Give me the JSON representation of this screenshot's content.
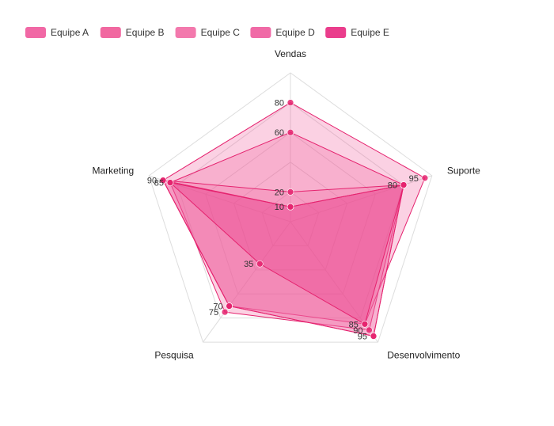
{
  "chart_data": {
    "type": "radar",
    "title": "",
    "legend": {
      "position": "top-left",
      "entries": [
        "Equipe A",
        "Equipe B",
        "Equipe C",
        "Equipe D",
        "Equipe E"
      ]
    },
    "categories": [
      "Vendas",
      "Suporte",
      "Desenvolvimento",
      "Pesquisa",
      "Marketing"
    ],
    "range": [
      0,
      100
    ],
    "grid": true,
    "colors": {
      "series": [
        "#f0589b",
        "#f05896",
        "#f26aa4",
        "#ee5a9c",
        "#e8287f"
      ],
      "grid": "#dddddd",
      "point": "#e5236f"
    },
    "series": [
      {
        "name": "Equipe A",
        "values": [
          80,
          95,
          85,
          70,
          90
        ]
      },
      {
        "name": "Equipe B",
        "values": [
          60,
          80,
          90,
          75,
          85
        ]
      },
      {
        "name": "Equipe C",
        "values": [
          20,
          80,
          95,
          70,
          90
        ]
      },
      {
        "name": "Equipe D",
        "values": [
          10,
          80,
          95,
          70,
          90
        ]
      },
      {
        "name": "Equipe E",
        "values": [
          10,
          80,
          85,
          35,
          85
        ]
      }
    ],
    "data_labels": [
      {
        "axis": 0,
        "value": 80,
        "text": "80"
      },
      {
        "axis": 0,
        "value": 60,
        "text": "60"
      },
      {
        "axis": 0,
        "value": 20,
        "text": "20"
      },
      {
        "axis": 0,
        "value": 10,
        "text": "10"
      },
      {
        "axis": 1,
        "value": 95,
        "text": "95"
      },
      {
        "axis": 1,
        "value": 80,
        "text": "80"
      },
      {
        "axis": 2,
        "value": 85,
        "text": "85"
      },
      {
        "axis": 2,
        "value": 90,
        "text": "90"
      },
      {
        "axis": 2,
        "value": 95,
        "text": "95"
      },
      {
        "axis": 3,
        "value": 70,
        "text": "70"
      },
      {
        "axis": 3,
        "value": 75,
        "text": "75"
      },
      {
        "axis": 3,
        "value": 35,
        "text": "35"
      },
      {
        "axis": 4,
        "value": 90,
        "text": "90"
      },
      {
        "axis": 4,
        "value": 85,
        "text": "85"
      }
    ]
  }
}
